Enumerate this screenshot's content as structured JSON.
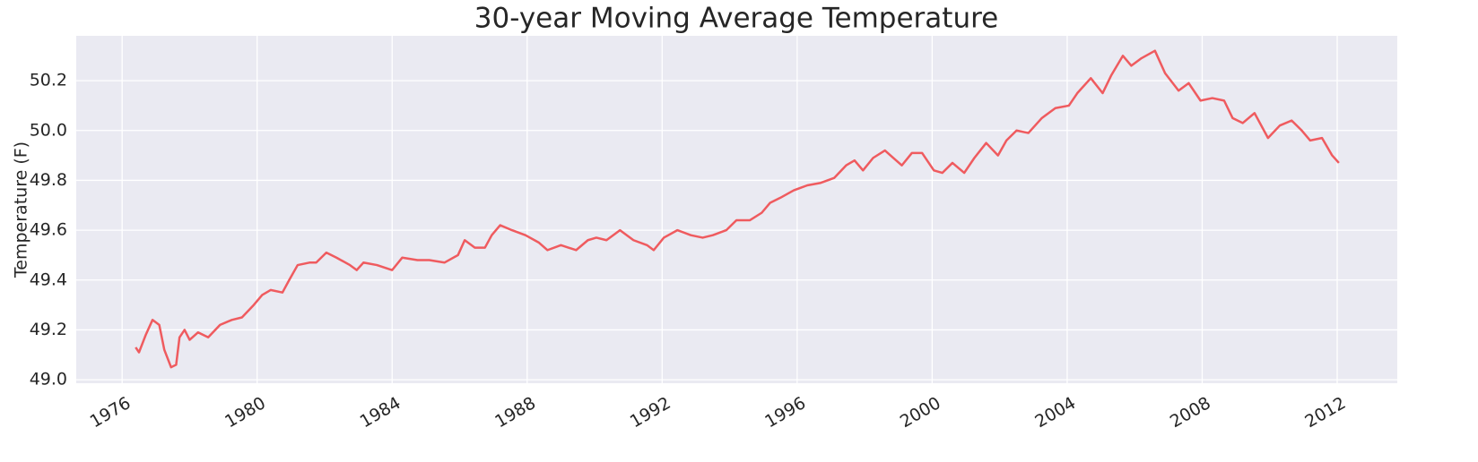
{
  "chart_data": {
    "type": "line",
    "title": "30-year Moving Average Temperature",
    "y_label": "Temperature (F)",
    "x": [
      1976.4,
      1976.5,
      1976.7,
      1976.9,
      1977.1,
      1977.25,
      1977.45,
      1977.6,
      1977.7,
      1977.85,
      1978.0,
      1978.25,
      1978.55,
      1978.9,
      1979.25,
      1979.55,
      1979.9,
      1980.15,
      1980.4,
      1980.75,
      1980.95,
      1981.2,
      1981.55,
      1981.75,
      1982.05,
      1982.35,
      1982.75,
      1982.95,
      1983.15,
      1983.55,
      1984.0,
      1984.3,
      1984.75,
      1985.1,
      1985.55,
      1985.95,
      1986.15,
      1986.45,
      1986.75,
      1986.95,
      1987.2,
      1987.55,
      1987.95,
      1988.35,
      1988.6,
      1989.0,
      1989.45,
      1989.8,
      1990.05,
      1990.35,
      1990.75,
      1991.15,
      1991.55,
      1991.75,
      1992.05,
      1992.45,
      1992.85,
      1993.2,
      1993.5,
      1993.9,
      1994.2,
      1994.6,
      1994.95,
      1995.2,
      1995.5,
      1995.9,
      1996.3,
      1996.7,
      1997.1,
      1997.45,
      1997.7,
      1997.95,
      1998.25,
      1998.6,
      1998.85,
      1999.1,
      1999.4,
      1999.7,
      2000.05,
      2000.3,
      2000.6,
      2000.95,
      2001.25,
      2001.6,
      2001.95,
      2002.2,
      2002.5,
      2002.85,
      2003.25,
      2003.65,
      2004.05,
      2004.3,
      2004.7,
      2005.05,
      2005.3,
      2005.65,
      2005.9,
      2006.2,
      2006.6,
      2006.9,
      2007.3,
      2007.6,
      2007.95,
      2008.3,
      2008.65,
      2008.9,
      2009.2,
      2009.55,
      2009.95,
      2010.3,
      2010.65,
      2010.95,
      2011.2,
      2011.55,
      2011.85,
      2012.05
    ],
    "series": [
      {
        "color": "#ef5b5f",
        "values": [
          49.13,
          49.11,
          49.18,
          49.24,
          49.22,
          49.12,
          49.05,
          49.06,
          49.17,
          49.2,
          49.16,
          49.19,
          49.17,
          49.22,
          49.24,
          49.25,
          49.3,
          49.34,
          49.36,
          49.35,
          49.4,
          49.46,
          49.47,
          49.47,
          49.51,
          49.49,
          49.46,
          49.44,
          49.47,
          49.46,
          49.44,
          49.49,
          49.48,
          49.48,
          49.47,
          49.5,
          49.56,
          49.53,
          49.53,
          49.58,
          49.62,
          49.6,
          49.58,
          49.55,
          49.52,
          49.54,
          49.52,
          49.56,
          49.57,
          49.56,
          49.6,
          49.56,
          49.54,
          49.52,
          49.57,
          49.6,
          49.58,
          49.57,
          49.58,
          49.6,
          49.64,
          49.64,
          49.67,
          49.71,
          49.73,
          49.76,
          49.78,
          49.79,
          49.81,
          49.86,
          49.88,
          49.84,
          49.89,
          49.92,
          49.89,
          49.86,
          49.91,
          49.91,
          49.84,
          49.83,
          49.87,
          49.83,
          49.89,
          49.95,
          49.9,
          49.96,
          50.0,
          49.99,
          50.05,
          50.09,
          50.1,
          50.15,
          50.21,
          50.15,
          50.22,
          50.3,
          50.26,
          50.29,
          50.32,
          50.23,
          50.16,
          50.19,
          50.12,
          50.13,
          50.12,
          50.05,
          50.03,
          50.07,
          49.97,
          50.02,
          50.04,
          50.0,
          49.96,
          49.97,
          49.9,
          49.87
        ]
      }
    ],
    "xlim": [
      1974.64,
      2013.78
    ],
    "xticks": [
      1976,
      1980,
      1984,
      1988,
      1992,
      1996,
      2000,
      2004,
      2008,
      2012
    ],
    "ylim": [
      48.986,
      50.38
    ],
    "yticks": [
      {
        "value": 49,
        "label": "49.0"
      },
      49.2,
      49.4,
      49.6,
      49.8,
      {
        "value": 50,
        "label": "50.0"
      },
      50.2
    ],
    "grid": true
  }
}
